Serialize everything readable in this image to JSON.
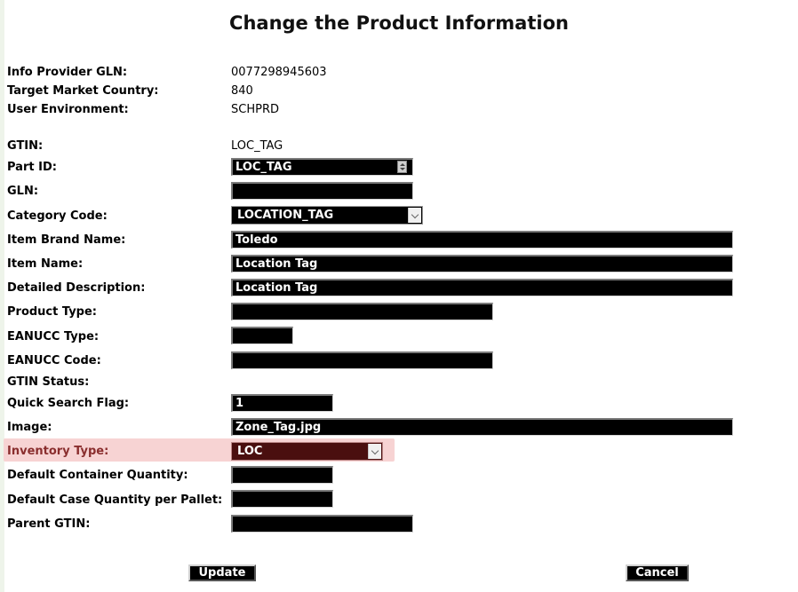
{
  "page": {
    "title": "Change the Product Information"
  },
  "info": {
    "provider_gln_label": "Info Provider GLN:",
    "provider_gln": "0077298945603",
    "target_market_label": "Target Market Country:",
    "target_market": "840",
    "user_env_label": "User Environment:",
    "user_env": "SCHPRD"
  },
  "form": {
    "gtin_label": "GTIN:",
    "gtin": "LOC_TAG",
    "part_id_label": "Part ID:",
    "part_id": "LOC_TAG",
    "gln_label": "GLN:",
    "gln": "",
    "category_label": "Category Code:",
    "category": "LOCATION_TAG",
    "brand_label": "Item Brand Name:",
    "brand": "Toledo",
    "item_name_label": "Item Name:",
    "item_name": "Location Tag",
    "desc_label": "Detailed Description:",
    "desc": "Location Tag",
    "product_type_label": "Product Type:",
    "product_type": "",
    "eanucc_type_label": "EANUCC Type:",
    "eanucc_type": "",
    "eanucc_code_label": "EANUCC Code:",
    "eanucc_code": "",
    "gtin_status_label": "GTIN Status:",
    "quick_search_label": "Quick Search Flag:",
    "quick_search": "1",
    "image_label": "Image:",
    "image": "Zone_Tag.jpg",
    "inventory_type_label": "Inventory Type:",
    "inventory_type": "LOC",
    "default_container_label": "Default Container Quantity:",
    "default_container": "",
    "case_per_pallet_label": "Default Case Quantity per Pallet:",
    "case_per_pallet": "",
    "parent_gtin_label": "Parent GTIN:",
    "parent_gtin": ""
  },
  "buttons": {
    "update": "Update",
    "cancel": "Cancel"
  },
  "colors": {
    "highlight": "#f7d3d3",
    "field_bg": "#000000",
    "highlight_text": "#8a2e2e"
  }
}
